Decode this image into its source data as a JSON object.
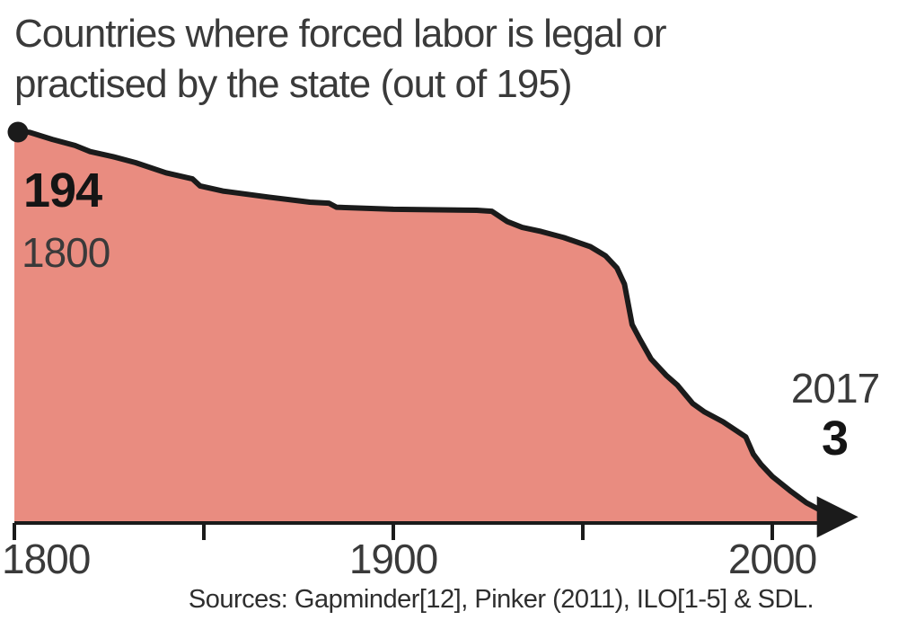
{
  "title": {
    "line1": "Countries where forced labor is legal or",
    "line2": "practised by the state (out of 195)"
  },
  "annotations": {
    "start": {
      "value": "194",
      "year": "1800"
    },
    "end": {
      "year": "2017",
      "value": "3"
    }
  },
  "x_axis": {
    "labels": [
      "1800",
      "1900",
      "2000"
    ]
  },
  "source_line": "Sources: Gapminder[12], Pinker (2011), ILO[1-5] & SDL.",
  "colors": {
    "area": "#e98c80",
    "line": "#1b1b1b",
    "axis": "#1b1b1b"
  },
  "chart_data": {
    "type": "area",
    "title": "Countries where forced labor is legal or practised by the state (out of 195)",
    "xlabel": "",
    "ylabel": "",
    "xlim": [
      1800,
      2017
    ],
    "ylim": [
      0,
      195
    ],
    "x_ticks": [
      1800,
      1850,
      1900,
      1950,
      2000
    ],
    "x_tick_labels": [
      "1800",
      "",
      "1900",
      "",
      "2000"
    ],
    "grid": false,
    "legend": false,
    "series": [
      {
        "name": "Countries where forced labor is legal or practised by the state",
        "years": [
          1800,
          1804,
          1810,
          1816,
          1820,
          1826,
          1832,
          1840,
          1847,
          1849,
          1855,
          1867,
          1878,
          1883,
          1885,
          1900,
          1922,
          1926,
          1930,
          1934,
          1939,
          1945,
          1952,
          1956,
          1959,
          1961,
          1963,
          1965,
          1968,
          1972,
          1975,
          1979,
          1982,
          1987,
          1993,
          1995,
          1997,
          2000,
          2005,
          2009,
          2013,
          2017
        ],
        "values": [
          194,
          193,
          189.5,
          186.5,
          183.5,
          181,
          178,
          173,
          170,
          166.5,
          164,
          161,
          158.5,
          158,
          156,
          155,
          154.5,
          154,
          149,
          146,
          144,
          141,
          136.5,
          132,
          126,
          118,
          98,
          91,
          81,
          73,
          68,
          59,
          55,
          50,
          42.5,
          34,
          29,
          23,
          15.5,
          10,
          6,
          3
        ]
      }
    ],
    "annotated_points": [
      {
        "year": 1800,
        "value": 194,
        "marker": "dot"
      },
      {
        "year": 2017,
        "value": 3,
        "marker": "arrow"
      }
    ]
  }
}
